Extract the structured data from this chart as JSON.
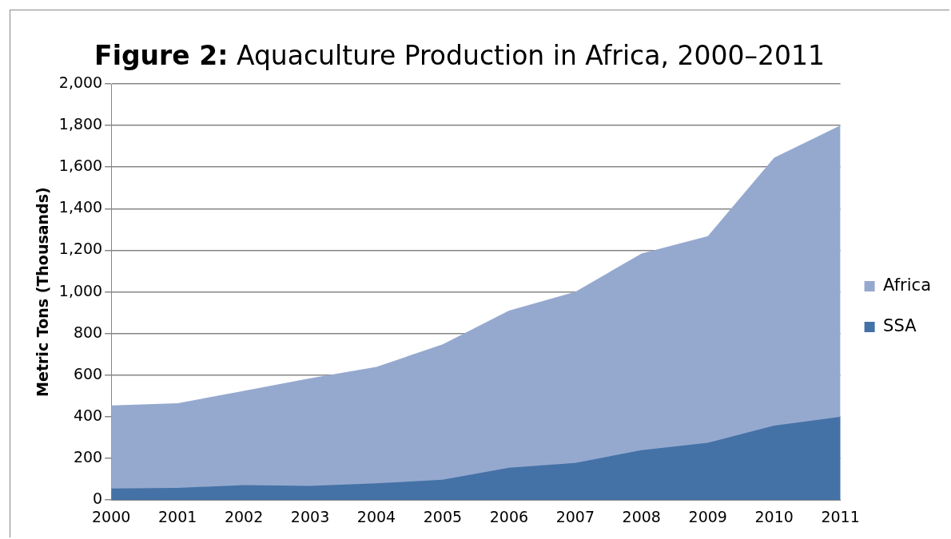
{
  "chart_data": {
    "type": "area",
    "title": "Figure 2: Aquaculture Production in Africa, 2000–2011",
    "ylabel": "Metric Tons (Thousands)",
    "categories": [
      "2000",
      "2001",
      "2002",
      "2003",
      "2004",
      "2005",
      "2006",
      "2007",
      "2008",
      "2009",
      "2010",
      "2011"
    ],
    "series": [
      {
        "name": "Africa",
        "color": "#95a9cf",
        "values": [
          455,
          465,
          525,
          585,
          640,
          748,
          910,
          1000,
          1185,
          1268,
          1645,
          1800
        ]
      },
      {
        "name": "SSA",
        "color": "#4572a6",
        "values": [
          55,
          58,
          72,
          68,
          80,
          98,
          155,
          178,
          240,
          275,
          358,
          400
        ]
      }
    ],
    "ylim": [
      0,
      2000
    ],
    "yticks": [
      0,
      200,
      400,
      600,
      800,
      {
        "value": 1000,
        "label": "1,000"
      },
      {
        "value": 1200,
        "label": "1,200"
      },
      {
        "value": 1400,
        "label": "1,400"
      },
      {
        "value": 1600,
        "label": "1,600"
      },
      {
        "value": 1800,
        "label": "1,800"
      },
      {
        "value": 2000,
        "label": "2,000"
      }
    ],
    "grid": "y",
    "legend": "right",
    "marker": "none"
  }
}
